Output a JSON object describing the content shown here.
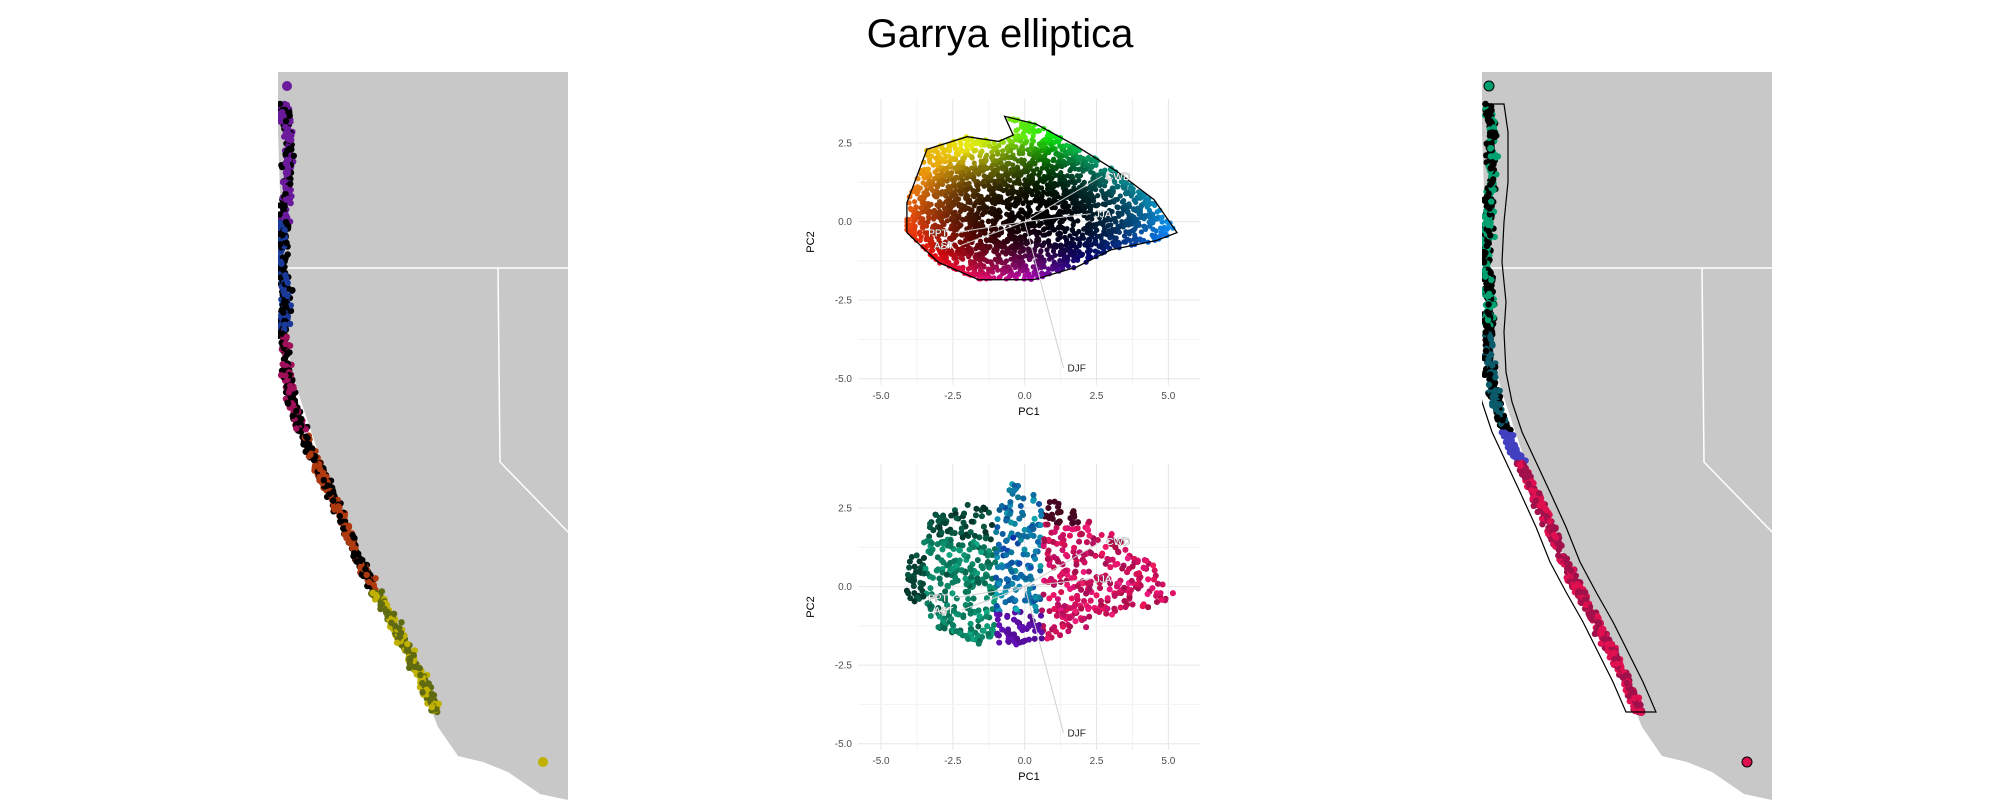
{
  "title": "Garrya elliptica",
  "colors": {
    "land": "#c8c8c8",
    "border": "#ffffff",
    "gridline": "#e6e6e6",
    "hull": "#000000",
    "vector": "#d0d0d0"
  },
  "chart_data": [
    {
      "panel": "left-map",
      "type": "map",
      "description_colors": [
        "#6a1a9a",
        "#000000",
        "#1a3a9a",
        "#a0105a",
        "#b03a10",
        "#606a10",
        "#c0b000"
      ]
    },
    {
      "panel": "pca-top",
      "type": "scatter",
      "xlabel": "PC1",
      "ylabel": "PC2",
      "xlim": [
        -5.8,
        6.1
      ],
      "ylim": [
        -5.2,
        3.9
      ],
      "xticks": [
        -5.0,
        -2.5,
        0.0,
        2.5,
        5.0
      ],
      "yticks": [
        2.5,
        0.0,
        -2.5,
        -5.0
      ],
      "xtick_labels": [
        "-5.0",
        "-2.5",
        "0.0",
        "2.5",
        "5.0"
      ],
      "ytick_labels": [
        "2.5",
        "0.0",
        "-2.5",
        "-5.0"
      ],
      "grid": true,
      "vectors": [
        {
          "label": "CWD",
          "x": 2.7,
          "y": 1.45
        },
        {
          "label": "JJA",
          "x": 2.3,
          "y": 0.25
        },
        {
          "label": "PPT",
          "x": -2.4,
          "y": -0.35
        },
        {
          "label": "AST",
          "x": -2.2,
          "y": -0.75
        },
        {
          "label": "DJF",
          "x": 1.35,
          "y": -4.65
        }
      ],
      "hull": [
        [
          -4.1,
          0.6
        ],
        [
          -3.4,
          2.3
        ],
        [
          -2.0,
          2.7
        ],
        [
          -0.9,
          2.55
        ],
        [
          -0.4,
          2.75
        ],
        [
          -0.7,
          3.35
        ],
        [
          0.4,
          3.1
        ],
        [
          1.8,
          2.4
        ],
        [
          3.2,
          1.6
        ],
        [
          4.5,
          0.7
        ],
        [
          5.3,
          -0.35
        ],
        [
          4.6,
          -0.6
        ],
        [
          3.0,
          -0.9
        ],
        [
          1.8,
          -1.45
        ],
        [
          0.3,
          -1.85
        ],
        [
          -1.6,
          -1.85
        ],
        [
          -3.0,
          -1.3
        ],
        [
          -4.1,
          -0.35
        ]
      ]
    },
    {
      "panel": "pca-bottom",
      "type": "scatter",
      "xlabel": "PC1",
      "ylabel": "PC2",
      "xlim": [
        -5.8,
        6.1
      ],
      "ylim": [
        -5.2,
        3.9
      ],
      "xticks": [
        -5.0,
        -2.5,
        0.0,
        2.5,
        5.0
      ],
      "yticks": [
        2.5,
        0.0,
        -2.5,
        -5.0
      ],
      "xtick_labels": [
        "-5.0",
        "-2.5",
        "0.0",
        "2.5",
        "5.0"
      ],
      "ytick_labels": [
        "2.5",
        "0.0",
        "-2.5",
        "-5.0"
      ],
      "grid": true,
      "vectors": [
        {
          "label": "CWD",
          "x": 2.7,
          "y": 1.45
        },
        {
          "label": "JJA",
          "x": 2.3,
          "y": 0.25
        },
        {
          "label": "PPT",
          "x": -2.4,
          "y": -0.35
        },
        {
          "label": "AST",
          "x": -2.2,
          "y": -0.75
        },
        {
          "label": "DJF",
          "x": 1.35,
          "y": -4.65
        }
      ]
    },
    {
      "panel": "right-map",
      "type": "map",
      "description_colors": [
        "#00a070",
        "#000000",
        "#0a5a6a",
        "#4040c0",
        "#a0104a",
        "#e01050"
      ]
    }
  ]
}
